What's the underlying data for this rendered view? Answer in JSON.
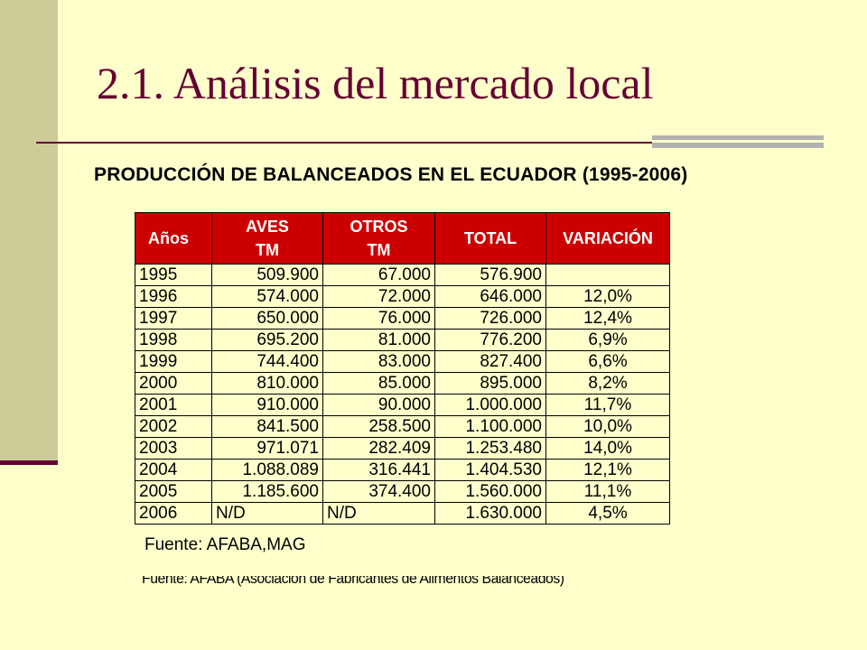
{
  "slide": {
    "title": "2.1. Análisis del mercado local",
    "subtitle": "PRODUCCIÓN DE BALANCEADOS EN EL ECUADOR (1995-2006)",
    "source": "Fuente: AFABA,MAG",
    "hidden_source": "Fuente: AFABA (Asociación de Fabricantes de Alimentos Balanceados)"
  },
  "table": {
    "headers": {
      "years": "Años",
      "aves_line1": "AVES",
      "aves_line2": "TM",
      "otros_line1": "OTROS",
      "otros_line2": "TM",
      "total": "TOTAL",
      "variation": "VARIACIÓN"
    },
    "rows": [
      {
        "year": "1995",
        "aves": "509.900",
        "otros": "67.000",
        "total": "576.900",
        "variation": ""
      },
      {
        "year": "1996",
        "aves": "574.000",
        "otros": "72.000",
        "total": "646.000",
        "variation": "12,0%"
      },
      {
        "year": "1997",
        "aves": "650.000",
        "otros": "76.000",
        "total": "726.000",
        "variation": "12,4%"
      },
      {
        "year": "1998",
        "aves": "695.200",
        "otros": "81.000",
        "total": "776.200",
        "variation": "6,9%"
      },
      {
        "year": "1999",
        "aves": "744.400",
        "otros": "83.000",
        "total": "827.400",
        "variation": "6,6%"
      },
      {
        "year": "2000",
        "aves": "810.000",
        "otros": "85.000",
        "total": "895.000",
        "variation": "8,2%"
      },
      {
        "year": "2001",
        "aves": "910.000",
        "otros": "90.000",
        "total": "1.000.000",
        "variation": "11,7%"
      },
      {
        "year": "2002",
        "aves": "841.500",
        "otros": "258.500",
        "total": "1.100.000",
        "variation": "10,0%"
      },
      {
        "year": "2003",
        "aves": "971.071",
        "otros": "282.409",
        "total": "1.253.480",
        "variation": "14,0%"
      },
      {
        "year": "2004",
        "aves": "1.088.089",
        "otros": "316.441",
        "total": "1.404.530",
        "variation": "12,1%"
      },
      {
        "year": "2005",
        "aves": "1.185.600",
        "otros": "374.400",
        "total": "1.560.000",
        "variation": "11,1%"
      },
      {
        "year": "2006",
        "aves": "N/D",
        "otros": "N/D",
        "total": "1.630.000",
        "variation": "4,5%"
      }
    ]
  },
  "colors": {
    "background": "#ffffcc",
    "side_bar": "#cccc99",
    "accent": "#660033",
    "header_fill": "#cc0000",
    "rule_gray": "#b2b2b2"
  }
}
